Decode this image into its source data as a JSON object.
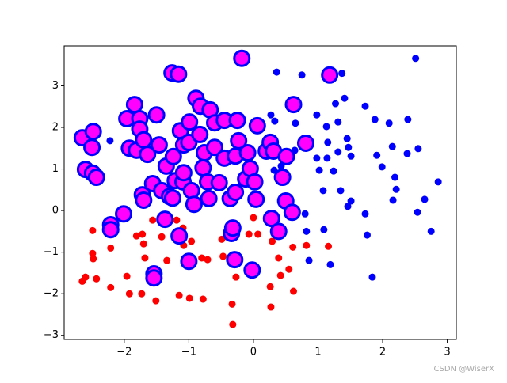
{
  "chart_data": {
    "type": "scatter",
    "xlim": [
      -2.93,
      3.14
    ],
    "ylim": [
      -3.1,
      3.96
    ],
    "xticks": [
      {
        "value": -2,
        "label": "−2"
      },
      {
        "value": -1,
        "label": "−1"
      },
      0,
      1,
      2,
      3
    ],
    "yticks": [
      {
        "value": -3,
        "label": "−3"
      },
      {
        "value": -2,
        "label": "−2"
      },
      {
        "value": -1,
        "label": "−1"
      },
      0,
      1,
      2,
      3
    ],
    "series": [
      {
        "color": "#ff0000",
        "x": [
          -2.65,
          -2.6,
          -2.49,
          -2.48,
          -2.49,
          -2.43,
          -2.21,
          -2.21,
          -1.96,
          -1.92,
          -1.81,
          -1.72,
          -1.7,
          -1.68,
          -1.73,
          -1.56,
          -1.51,
          -1.42,
          -1.34,
          -1.19,
          -1.15,
          -1.08,
          -1.09,
          -0.99,
          -0.96,
          -0.8,
          -0.71,
          -0.78,
          -0.49,
          -0.47,
          -0.33,
          -0.32,
          -0.27,
          -0.07,
          0.0,
          0.07,
          0.26,
          0.27,
          0.29,
          0.39,
          0.42,
          0.61,
          0.62,
          0.82,
          1.16,
          0.55
        ],
        "values": [
          -1.7,
          -1.6,
          -1.03,
          -1.16,
          -0.48,
          -1.64,
          -1.85,
          -0.9,
          -1.58,
          -2.0,
          -0.61,
          -0.57,
          -0.8,
          -1.14,
          -2.0,
          -0.23,
          -2.17,
          -0.63,
          -1.2,
          -0.23,
          -2.04,
          -0.84,
          -0.42,
          -2.11,
          -0.74,
          -1.14,
          -1.18,
          -2.13,
          -0.69,
          -1.1,
          -2.25,
          -2.74,
          -1.6,
          -0.57,
          -0.17,
          -0.57,
          -1.83,
          -2.32,
          -0.74,
          -1.14,
          -1.56,
          -0.88,
          -1.94,
          -0.84,
          -0.86,
          -1.41
        ]
      },
      {
        "color": "#0000ff",
        "x": [
          2.51,
          0.36,
          0.75,
          1.37,
          1.41,
          1.27,
          0.98,
          0.27,
          0.33,
          0.65,
          1.13,
          1.31,
          1.73,
          1.88,
          2.1,
          2.39,
          2.15,
          1.91,
          2.38,
          2.55,
          1.99,
          2.19,
          2.21,
          2.16,
          2.54,
          2.65,
          2.86,
          2.75,
          1.76,
          1.84,
          1.73,
          1.51,
          1.35,
          1.46,
          1.08,
          1.02,
          1.14,
          1.31,
          1.45,
          1.47,
          1.51,
          1.24,
          1.15,
          0.98,
          0.64,
          0.56,
          0.43,
          0.32,
          0.82,
          0.86,
          1.09,
          1.19,
          0.8,
          -2.22
        ],
        "values": [
          3.66,
          3.33,
          3.26,
          3.3,
          2.7,
          2.57,
          2.3,
          2.3,
          2.15,
          2.1,
          2.02,
          2.13,
          2.51,
          2.19,
          2.1,
          2.19,
          1.54,
          1.33,
          1.37,
          1.49,
          1.05,
          0.8,
          0.51,
          0.25,
          -0.04,
          0.27,
          0.69,
          -0.5,
          -0.59,
          -1.6,
          -0.08,
          0.23,
          0.48,
          0.1,
          0.48,
          0.97,
          1.26,
          1.41,
          1.73,
          1.52,
          1.31,
          0.95,
          1.64,
          1.26,
          1.45,
          1.3,
          1.07,
          0.97,
          -0.5,
          -1.2,
          -0.46,
          -1.3,
          -0.08,
          1.68
        ]
      },
      {
        "color": "#ff00ff",
        "edgecolor": "#0000ff",
        "x": [
          -2.65,
          -2.48,
          -2.5,
          -2.6,
          -2.49,
          -2.43,
          -2.21,
          -2.21,
          -2.01,
          -1.96,
          -1.84,
          -1.76,
          -1.76,
          -1.92,
          -1.81,
          -1.7,
          -1.64,
          -1.72,
          -1.7,
          -1.56,
          -1.5,
          -1.46,
          -1.42,
          -1.35,
          -1.37,
          -1.3,
          -1.24,
          -1.21,
          -1.15,
          -1.26,
          -1.16,
          -1.13,
          -1.09,
          -1.08,
          -1.08,
          -1.0,
          -0.99,
          -1.0,
          -0.96,
          -0.92,
          -0.89,
          -0.82,
          -0.83,
          -0.78,
          -0.76,
          -0.71,
          -0.69,
          -0.67,
          -0.6,
          -0.6,
          -0.53,
          -0.45,
          -0.45,
          -0.36,
          -0.34,
          -0.32,
          -0.29,
          -0.28,
          -0.28,
          -0.25,
          -0.23,
          -0.18,
          -0.12,
          -0.09,
          -0.05,
          -0.02,
          0.02,
          0.04,
          0.06,
          0.2,
          0.26,
          0.28,
          0.31,
          0.39,
          0.45,
          0.5,
          0.51,
          0.6,
          0.62,
          0.81,
          1.18,
          -1.25,
          -1.54,
          -1.54
        ],
        "values": [
          1.75,
          1.9,
          1.52,
          0.99,
          0.9,
          0.8,
          -0.34,
          -0.46,
          -0.08,
          2.21,
          2.55,
          2.21,
          1.96,
          1.5,
          1.45,
          1.7,
          1.35,
          0.38,
          0.25,
          0.65,
          2.3,
          1.58,
          0.48,
          1.07,
          -0.21,
          0.34,
          1.3,
          0.72,
          -0.61,
          3.31,
          3.28,
          1.92,
          0.69,
          0.91,
          1.58,
          1.64,
          2.13,
          -1.22,
          0.48,
          0.15,
          2.7,
          2.51,
          1.83,
          1.03,
          1.39,
          0.69,
          0.29,
          2.42,
          2.11,
          1.52,
          0.67,
          1.26,
          2.17,
          0.29,
          -0.55,
          -0.42,
          -1.18,
          1.31,
          0.44,
          2.17,
          1.68,
          3.66,
          0.76,
          1.39,
          1.01,
          -1.43,
          0.69,
          0.27,
          2.04,
          1.43,
          1.64,
          -0.19,
          1.43,
          -0.5,
          0.8,
          0.23,
          1.3,
          -0.04,
          2.55,
          1.62,
          3.26,
          0.3,
          -1.52,
          -1.62
        ]
      }
    ]
  },
  "watermark": "CSDN @WiserX"
}
